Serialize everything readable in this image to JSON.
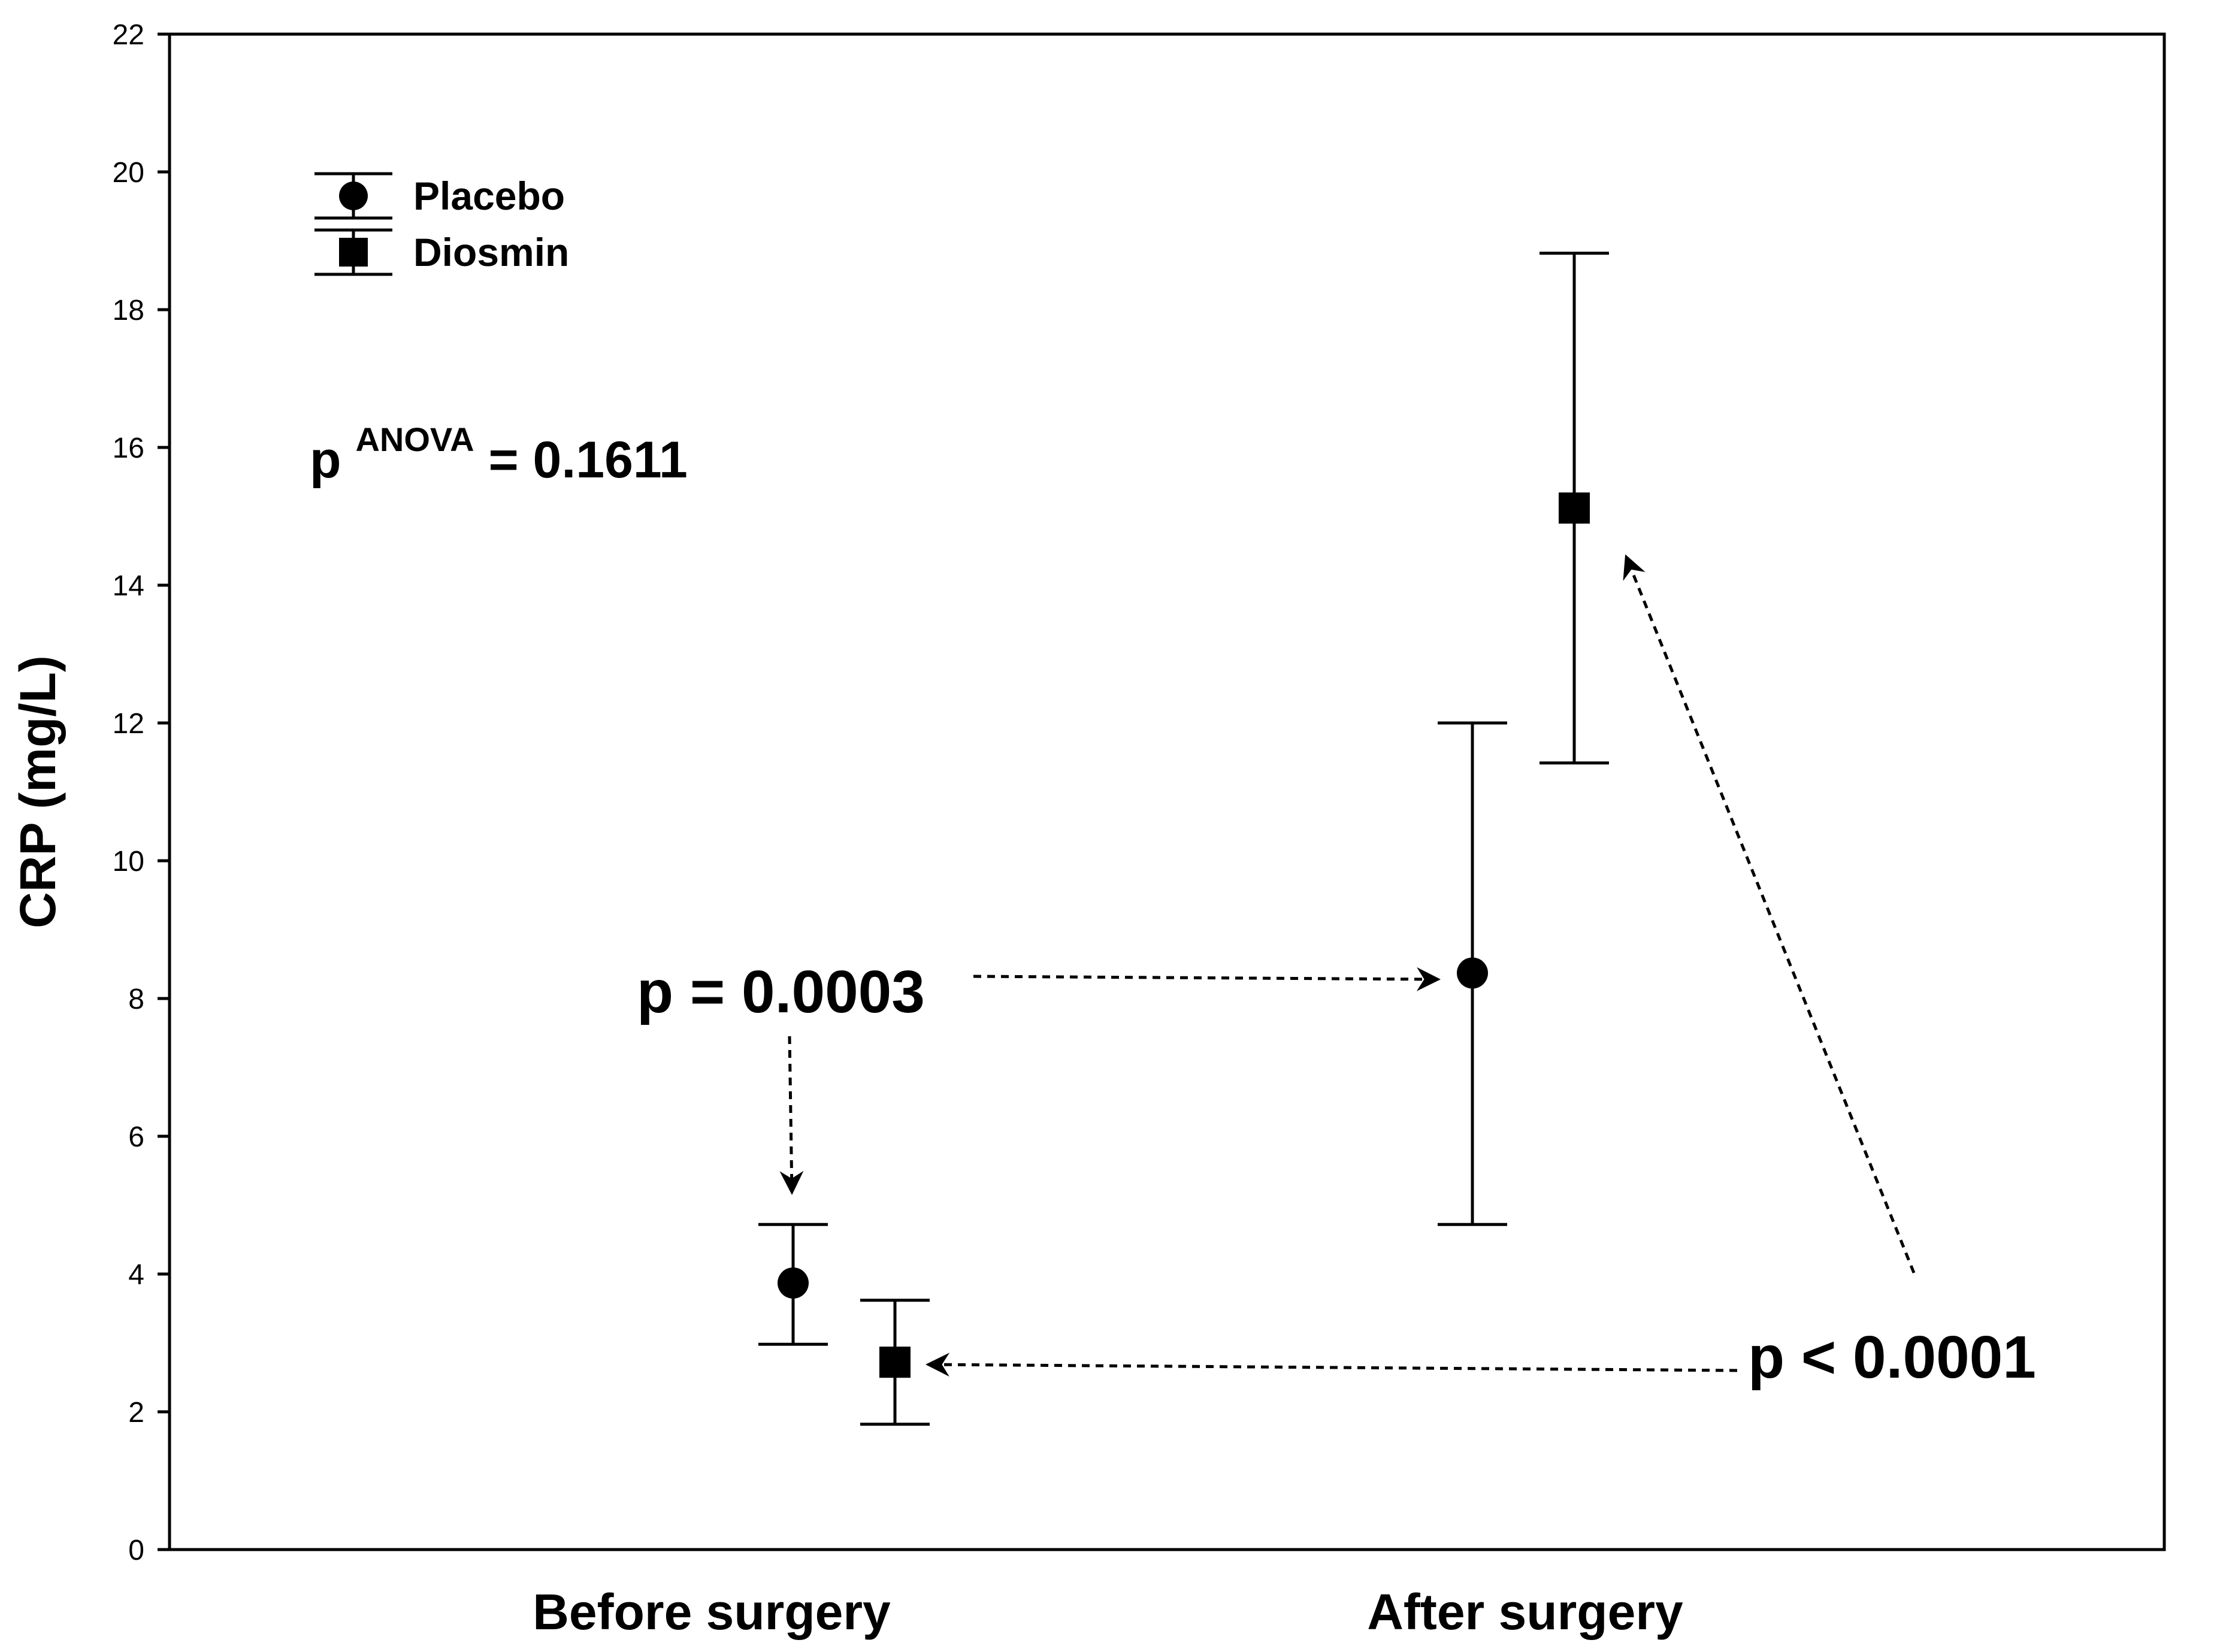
{
  "chart_data": {
    "type": "scatter",
    "subtype": "mean-with-error-bars",
    "title": "",
    "xlabel": "",
    "ylabel": "CRP (mg/L)",
    "ylim": [
      0,
      22
    ],
    "yticks": [
      0,
      2,
      4,
      6,
      8,
      10,
      12,
      14,
      16,
      18,
      20,
      22
    ],
    "grid": false,
    "categories": [
      "Before surgery",
      "After surgery"
    ],
    "series": [
      {
        "name": "Placebo",
        "marker": "circle",
        "values": [
          3.87,
          8.37
        ],
        "error_low": [
          2.98,
          4.72
        ],
        "error_high": [
          4.72,
          12.0
        ]
      },
      {
        "name": "Diosmin",
        "marker": "square",
        "values": [
          2.72,
          15.12
        ],
        "error_low": [
          1.82,
          11.42
        ],
        "error_high": [
          3.62,
          18.82
        ]
      }
    ],
    "legend": {
      "position": "top-left",
      "entries": [
        "Placebo",
        "Diosmin"
      ]
    },
    "annotations": {
      "anova_p": "p",
      "anova_superscript": "ANOVA",
      "anova_value": " = 0.1611",
      "p_placebo": "p = 0.0003",
      "p_diosmin": "p < 0.0001"
    }
  }
}
